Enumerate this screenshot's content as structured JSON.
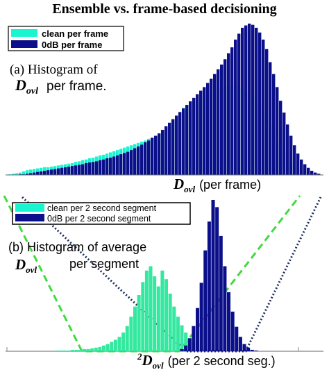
{
  "title": "Ensemble vs. frame-based decisioning",
  "colors": {
    "clean": "#19f5d0",
    "noisy": "#0b0f8a",
    "clean_seg": "#34e8a0",
    "green_dash": "#3ddc3d",
    "dark_dot": "#1c2e5c",
    "axis": "#666666"
  },
  "chart_data": [
    {
      "type": "bar",
      "panel": "a",
      "annotation_line1": "(a) Histogram of",
      "annotation_var": "D",
      "annotation_sub": "ovl",
      "annotation_line2": "per frame.",
      "xlabel_var": "D",
      "xlabel_sub": "ovl",
      "xlabel_rest": "(per frame)",
      "legend_position": "top-left",
      "grid": false,
      "series": [
        {
          "name": "clean per frame",
          "values": [
            1,
            2,
            3,
            4,
            6,
            8,
            9,
            10,
            11,
            12,
            13,
            13,
            14,
            15,
            16,
            17,
            18,
            19,
            20,
            22,
            23,
            25,
            26,
            28,
            29,
            31,
            33,
            34,
            36,
            38,
            40,
            42,
            44,
            46,
            48,
            50,
            52,
            54,
            56,
            58,
            61,
            64,
            66,
            69,
            73,
            78,
            83,
            90,
            97,
            106,
            113,
            118,
            121,
            125,
            128,
            132,
            135,
            137,
            140,
            143,
            146,
            148,
            150,
            150,
            150,
            149,
            147,
            144,
            140,
            136,
            130,
            123,
            115,
            105,
            95,
            84,
            72,
            60,
            48,
            38,
            28,
            20,
            14,
            10,
            7,
            5,
            3,
            2,
            1,
            1
          ]
        },
        {
          "name": "0dB per frame",
          "values": [
            0,
            0,
            0,
            1,
            1,
            2,
            3,
            4,
            5,
            6,
            7,
            8,
            9,
            10,
            11,
            12,
            13,
            14,
            15,
            16,
            17,
            18,
            20,
            21,
            22,
            23,
            25,
            26,
            28,
            29,
            31,
            33,
            35,
            37,
            39,
            42,
            45,
            48,
            51,
            55,
            58,
            62,
            66,
            70,
            76,
            82,
            88,
            94,
            100,
            106,
            112,
            118,
            124,
            130,
            136,
            142,
            148,
            155,
            162,
            170,
            178,
            186,
            195,
            205,
            215,
            228,
            238,
            248,
            252,
            255,
            253,
            248,
            240,
            228,
            212,
            190,
            170,
            148,
            125,
            105,
            85,
            66,
            50,
            36,
            26,
            18,
            12,
            7,
            4,
            2
          ]
        }
      ]
    },
    {
      "type": "bar",
      "panel": "b",
      "annotation_line1": "(b) Histogram of average",
      "annotation_var": "D",
      "annotation_sub": "ovl",
      "annotation_line2": "per  segment",
      "xlabel_prefix": "2",
      "xlabel_var": "D",
      "xlabel_sub": "ovl",
      "xlabel_rest": "(per 2 second seg.)",
      "legend_position": "top-left",
      "grid": false,
      "series": [
        {
          "name": "clean per 2 second segment",
          "values": [
            0,
            0,
            0,
            0,
            0,
            0,
            0,
            0,
            0,
            0,
            0,
            0,
            1,
            1,
            1,
            1,
            2,
            2,
            2,
            3,
            3,
            4,
            5,
            6,
            8,
            10,
            13,
            16,
            20,
            26,
            35,
            48,
            62,
            78,
            96,
            112,
            118,
            104,
            90,
            112,
            100,
            80,
            62,
            48,
            36,
            26,
            18,
            12,
            8,
            5,
            3,
            2,
            1,
            0,
            0,
            0,
            0,
            0,
            0,
            0,
            0,
            0,
            0,
            0,
            0,
            0,
            0,
            0,
            0,
            0,
            0,
            0,
            0,
            0,
            0,
            0,
            0,
            0,
            0,
            0
          ]
        },
        {
          "name": "0dB per  2 second segment",
          "values": [
            0,
            0,
            0,
            0,
            0,
            0,
            0,
            0,
            0,
            0,
            0,
            0,
            0,
            0,
            0,
            0,
            0,
            0,
            0,
            0,
            0,
            0,
            0,
            0,
            0,
            0,
            0,
            0,
            0,
            0,
            0,
            0,
            0,
            0,
            0,
            0,
            0,
            0,
            0,
            0,
            0,
            0,
            0,
            0,
            3,
            8,
            18,
            35,
            60,
            95,
            140,
            180,
            210,
            200,
            160,
            118,
            82,
            55,
            34,
            20,
            10,
            5,
            2,
            1,
            0,
            0,
            0,
            0,
            0,
            0,
            0,
            0,
            0,
            0,
            0,
            0,
            0,
            0,
            0,
            0
          ]
        }
      ]
    }
  ]
}
